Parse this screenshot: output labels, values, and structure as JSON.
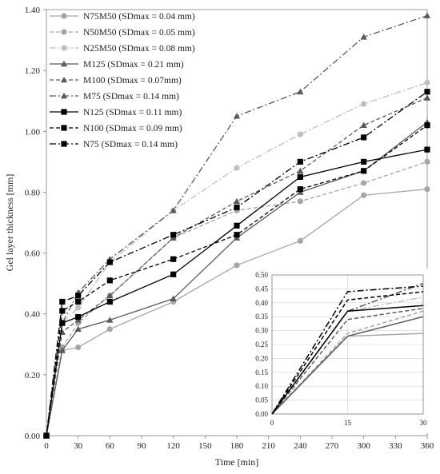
{
  "chart_data": [
    {
      "type": "line",
      "xlabel": "Time [min]",
      "ylabel": "Gel layer thickness [mm]",
      "xlim": [
        0,
        360
      ],
      "ylim": [
        0,
        1.4
      ],
      "xticks": [
        "0",
        "30",
        "60",
        "90",
        "120",
        "150",
        "180",
        "210",
        "240",
        "270",
        "300",
        "330",
        "360"
      ],
      "yticks": [
        "0.00",
        "0.20",
        "0.40",
        "0.60",
        "0.80",
        "1.00",
        "1.20",
        "1.40"
      ],
      "grid": false,
      "legend_position": "top-left",
      "series": [
        {
          "name": "N75M50 (SDmax = 0.04 mm)",
          "color": "#a6a6a6",
          "dash": "solid",
          "marker": "circle",
          "x": [
            0,
            15,
            30,
            60,
            120,
            180,
            240,
            300,
            360
          ],
          "y": [
            0,
            0.28,
            0.29,
            0.35,
            0.44,
            0.56,
            0.64,
            0.79,
            0.81
          ]
        },
        {
          "name": "N50M50 (SDmax = 0.05 mm)",
          "color": "#a6a6a6",
          "dash": "dash",
          "marker": "circle",
          "x": [
            0,
            15,
            30,
            60,
            120,
            180,
            240,
            300,
            360
          ],
          "y": [
            0,
            0.29,
            0.37,
            0.46,
            0.65,
            0.74,
            0.77,
            0.83,
            0.9
          ]
        },
        {
          "name": "N25M50 (SDmax = 0.08 mm)",
          "color": "#bfbfbf",
          "dash": "dashdot",
          "marker": "circle",
          "x": [
            0,
            15,
            30,
            60,
            120,
            180,
            240,
            300,
            360
          ],
          "y": [
            0,
            0.37,
            0.42,
            0.57,
            0.74,
            0.88,
            0.99,
            1.09,
            1.16
          ]
        },
        {
          "name": "M125 (SDmax = 0.21 mm)",
          "color": "#595959",
          "dash": "solid",
          "marker": "triangle",
          "x": [
            0,
            15,
            30,
            60,
            120,
            180,
            240,
            300,
            360
          ],
          "y": [
            0,
            0.28,
            0.35,
            0.38,
            0.45,
            0.65,
            0.8,
            0.87,
            1.03
          ]
        },
        {
          "name": "M100 (SDmax = 0.07mm)",
          "color": "#595959",
          "dash": "dash",
          "marker": "triangle",
          "x": [
            0,
            15,
            30,
            60,
            120,
            180,
            240,
            300,
            360
          ],
          "y": [
            0,
            0.34,
            0.38,
            0.46,
            0.65,
            0.77,
            0.87,
            1.02,
            1.11
          ]
        },
        {
          "name": "M75 (SDmax = 0.14 mm)",
          "color": "#595959",
          "dash": "dashdot",
          "marker": "triangle",
          "x": [
            0,
            15,
            30,
            60,
            120,
            180,
            240,
            300,
            360
          ],
          "y": [
            0,
            0.37,
            0.47,
            0.58,
            0.74,
            1.05,
            1.13,
            1.31,
            1.38
          ]
        },
        {
          "name": "N125 (SDmax = 0.11 mm)",
          "color": "#000000",
          "dash": "solid",
          "marker": "square",
          "x": [
            0,
            15,
            30,
            60,
            120,
            180,
            240,
            300,
            360
          ],
          "y": [
            0,
            0.37,
            0.39,
            0.44,
            0.53,
            0.69,
            0.85,
            0.9,
            0.94
          ]
        },
        {
          "name": "N100 (SDmax = 0.09 mm)",
          "color": "#000000",
          "dash": "dash",
          "marker": "square",
          "x": [
            0,
            15,
            30,
            60,
            120,
            180,
            240,
            300,
            360
          ],
          "y": [
            0,
            0.41,
            0.44,
            0.51,
            0.58,
            0.66,
            0.81,
            0.87,
            1.02
          ]
        },
        {
          "name": "N75 (SDmax = 0.14 mm)",
          "color": "#000000",
          "dash": "dashdot",
          "marker": "square",
          "x": [
            0,
            15,
            30,
            60,
            120,
            180,
            240,
            300,
            360
          ],
          "y": [
            0,
            0.44,
            0.46,
            0.57,
            0.66,
            0.75,
            0.9,
            0.98,
            1.13
          ]
        }
      ]
    },
    {
      "type": "line",
      "role": "inset",
      "xlim": [
        0,
        30
      ],
      "ylim": [
        0,
        0.5
      ],
      "xticks": [
        "0",
        "15",
        "30"
      ],
      "yticks": [
        "0.00",
        "0.05",
        "0.10",
        "0.15",
        "0.20",
        "0.25",
        "0.30",
        "0.35",
        "0.40",
        "0.45",
        "0.50"
      ],
      "grid": true,
      "series": [
        {
          "color": "#a6a6a6",
          "dash": "solid",
          "x": [
            0,
            15,
            30
          ],
          "y": [
            0,
            0.28,
            0.29
          ]
        },
        {
          "color": "#a6a6a6",
          "dash": "dash",
          "x": [
            0,
            15,
            30
          ],
          "y": [
            0,
            0.29,
            0.37
          ]
        },
        {
          "color": "#bfbfbf",
          "dash": "dashdot",
          "x": [
            0,
            15,
            30
          ],
          "y": [
            0,
            0.37,
            0.42
          ]
        },
        {
          "color": "#595959",
          "dash": "solid",
          "x": [
            0,
            15,
            30
          ],
          "y": [
            0,
            0.28,
            0.35
          ]
        },
        {
          "color": "#595959",
          "dash": "dash",
          "x": [
            0,
            15,
            30
          ],
          "y": [
            0,
            0.34,
            0.38
          ]
        },
        {
          "color": "#595959",
          "dash": "dashdot",
          "x": [
            0,
            15,
            30
          ],
          "y": [
            0,
            0.37,
            0.47
          ]
        },
        {
          "color": "#000000",
          "dash": "solid",
          "x": [
            0,
            15,
            30
          ],
          "y": [
            0,
            0.37,
            0.39
          ]
        },
        {
          "color": "#000000",
          "dash": "dash",
          "x": [
            0,
            15,
            30
          ],
          "y": [
            0,
            0.41,
            0.44
          ]
        },
        {
          "color": "#000000",
          "dash": "dashdot",
          "x": [
            0,
            15,
            30
          ],
          "y": [
            0,
            0.44,
            0.46
          ]
        }
      ]
    }
  ]
}
